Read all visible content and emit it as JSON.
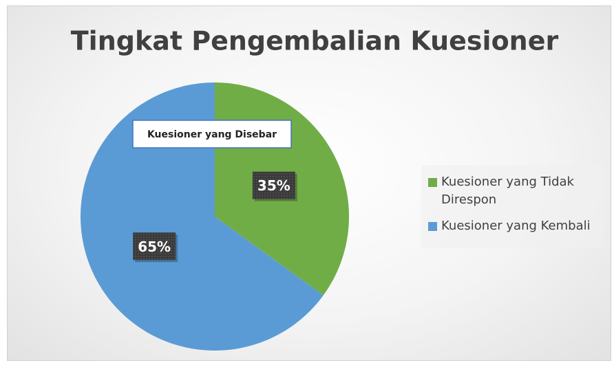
{
  "chart_data": {
    "type": "pie",
    "title": "Tingkat Pengembalian Kuesioner",
    "annotation": "Kuesioner yang Disebar",
    "categories": [
      "Kuesioner yang Tidak Direspon",
      "Kuesioner yang Kembali"
    ],
    "values": [
      35,
      65
    ],
    "value_labels": [
      "35%",
      "65%"
    ],
    "colors": [
      "#70ad47",
      "#5b9bd5"
    ],
    "legend": "right"
  }
}
